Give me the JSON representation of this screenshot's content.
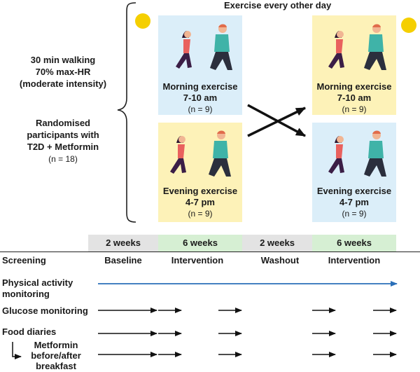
{
  "header": {
    "title": "Exercise every other day"
  },
  "left_panel": {
    "protocol_lines": [
      "30 min walking",
      "70% max-HR",
      "(moderate intensity)"
    ],
    "participants_lines": [
      "Randomised",
      "participants with",
      "T2D + Metformin"
    ],
    "participants_n": "(n = 18)"
  },
  "groups": {
    "period1_morning": {
      "title": "Morning exercise",
      "time": "7-10 am",
      "n": "(n = 9)"
    },
    "period1_evening": {
      "title": "Evening exercise",
      "time": "4-7 pm",
      "n": "(n = 9)"
    },
    "period2_morning": {
      "title": "Morning exercise",
      "time": "7-10 am",
      "n": "(n = 9)"
    },
    "period2_evening": {
      "title": "Evening exercise",
      "time": "4-7 pm",
      "n": "(n = 9)"
    }
  },
  "timeline": {
    "durations": [
      "2 weeks",
      "6 weeks",
      "2 weeks",
      "6 weeks"
    ],
    "phases": [
      "Screening",
      "Baseline",
      "Intervention",
      "Washout",
      "Intervention"
    ]
  },
  "measures": {
    "physical_activity": [
      "Physical activity",
      "monitoring"
    ],
    "glucose": "Glucose monitoring",
    "food": "Food diaries",
    "metformin": [
      "Metformin",
      "before/after",
      "breakfast"
    ]
  },
  "colors": {
    "morning_box": "#dbeef9",
    "evening_box": "#fdf2b8",
    "gray_segment": "#e3e3e3",
    "green_segment": "#d6efd3",
    "blue_arrow": "#2a6fb8",
    "sun": "#f5cf00",
    "moon": "#f5cf00"
  },
  "icons": [
    "sun-icon",
    "moon-icon",
    "walking-woman-icon",
    "walking-man-icon",
    "arrow-icon"
  ]
}
